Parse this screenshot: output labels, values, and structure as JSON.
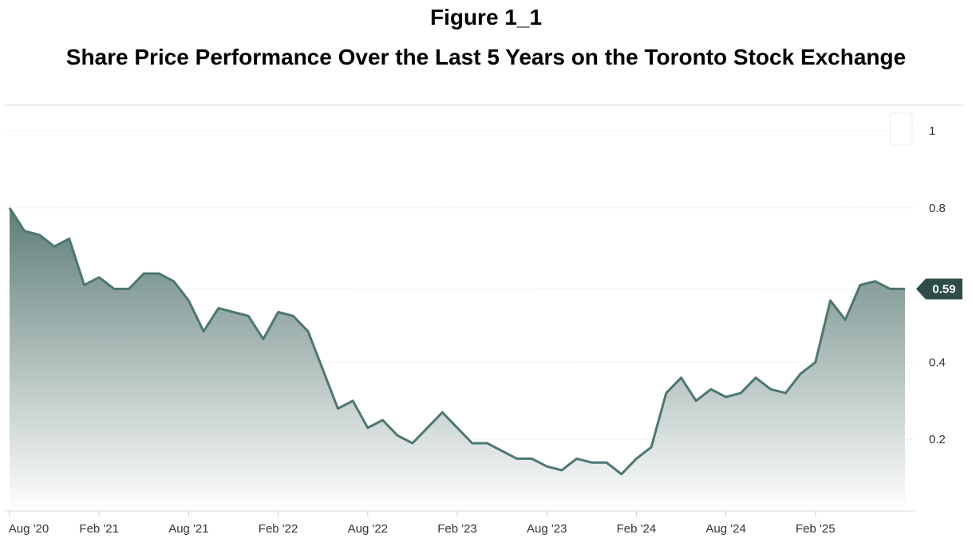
{
  "figure_label": "Figure 1_1",
  "chart_data": {
    "type": "area",
    "title": "Share Price Performance Over the Last 5 Years on the Toronto Stock Exchange",
    "xlabel": "",
    "ylabel": "",
    "ylim": [
      0,
      1
    ],
    "grid": true,
    "x_tick_labels": [
      "Aug '20",
      "Feb '21",
      "Aug '21",
      "Feb '22",
      "Aug '22",
      "Feb '23",
      "Aug '23",
      "Feb '24",
      "Aug '24",
      "Feb '25"
    ],
    "y_ticks": [
      0.2,
      0.4,
      0.59,
      0.8,
      1
    ],
    "y_tick_labels": [
      "0.2",
      "0.4",
      "0.8",
      "1"
    ],
    "last_value_label": "0.59",
    "colors": {
      "line": "#4d7772",
      "fill_top": "#5f7e78",
      "fill_bottom": "#ffffff",
      "badge": "#2e4d49"
    },
    "series": [
      {
        "x": [
          "2020-08",
          "2020-09",
          "2020-10",
          "2020-11",
          "2020-12",
          "2021-01",
          "2021-02",
          "2021-03",
          "2021-04",
          "2021-05",
          "2021-06",
          "2021-07",
          "2021-08",
          "2021-09",
          "2021-10",
          "2021-11",
          "2021-12",
          "2022-01",
          "2022-02",
          "2022-03",
          "2022-04",
          "2022-05",
          "2022-06",
          "2022-07",
          "2022-08",
          "2022-09",
          "2022-10",
          "2022-11",
          "2022-12",
          "2023-01",
          "2023-02",
          "2023-03",
          "2023-04",
          "2023-05",
          "2023-06",
          "2023-07",
          "2023-08",
          "2023-09",
          "2023-10",
          "2023-11",
          "2023-12",
          "2024-01",
          "2024-02",
          "2024-03",
          "2024-04",
          "2024-05",
          "2024-06",
          "2024-07",
          "2024-08",
          "2024-09",
          "2024-10",
          "2024-11",
          "2024-12",
          "2025-01",
          "2025-02",
          "2025-03",
          "2025-04",
          "2025-05",
          "2025-06",
          "2025-07",
          "2025-08"
        ],
        "values": [
          0.8,
          0.74,
          0.73,
          0.7,
          0.72,
          0.6,
          0.62,
          0.59,
          0.59,
          0.63,
          0.63,
          0.61,
          0.56,
          0.48,
          0.54,
          0.53,
          0.52,
          0.46,
          0.53,
          0.52,
          0.48,
          0.38,
          0.28,
          0.3,
          0.23,
          0.25,
          0.21,
          0.19,
          0.23,
          0.27,
          0.23,
          0.19,
          0.19,
          0.17,
          0.15,
          0.15,
          0.13,
          0.12,
          0.15,
          0.14,
          0.14,
          0.11,
          0.15,
          0.18,
          0.32,
          0.36,
          0.3,
          0.33,
          0.31,
          0.32,
          0.36,
          0.33,
          0.32,
          0.37,
          0.4,
          0.56,
          0.51,
          0.6,
          0.61,
          0.59,
          0.59
        ]
      }
    ]
  }
}
